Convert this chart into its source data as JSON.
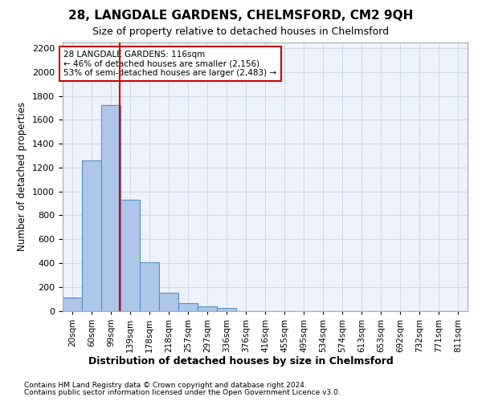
{
  "title": "28, LANGDALE GARDENS, CHELMSFORD, CM2 9QH",
  "subtitle": "Size of property relative to detached houses in Chelmsford",
  "xlabel_bottom": "Distribution of detached houses by size in Chelmsford",
  "ylabel": "Number of detached properties",
  "bin_labels": [
    "20sqm",
    "60sqm",
    "99sqm",
    "139sqm",
    "178sqm",
    "218sqm",
    "257sqm",
    "297sqm",
    "336sqm",
    "376sqm",
    "416sqm",
    "455sqm",
    "495sqm",
    "534sqm",
    "574sqm",
    "613sqm",
    "653sqm",
    "692sqm",
    "732sqm",
    "771sqm",
    "811sqm"
  ],
  "bar_values": [
    110,
    1260,
    1720,
    930,
    405,
    150,
    65,
    35,
    22,
    0,
    0,
    0,
    0,
    0,
    0,
    0,
    0,
    0,
    0,
    0,
    0
  ],
  "bar_color": "#aec6e8",
  "bar_edge_color": "#5a8fc2",
  "grid_color": "#d0d8e8",
  "background_color": "#eef2fa",
  "property_line_color": "#cc0000",
  "annotation_text": "28 LANGDALE GARDENS: 116sqm\n← 46% of detached houses are smaller (2,156)\n53% of semi-detached houses are larger (2,483) →",
  "annotation_box_color": "#cc0000",
  "ylim": [
    0,
    2250
  ],
  "yticks": [
    0,
    200,
    400,
    600,
    800,
    1000,
    1200,
    1400,
    1600,
    1800,
    2000,
    2200
  ],
  "footnote1": "Contains HM Land Registry data © Crown copyright and database right 2024.",
  "footnote2": "Contains public sector information licensed under the Open Government Licence v3.0."
}
